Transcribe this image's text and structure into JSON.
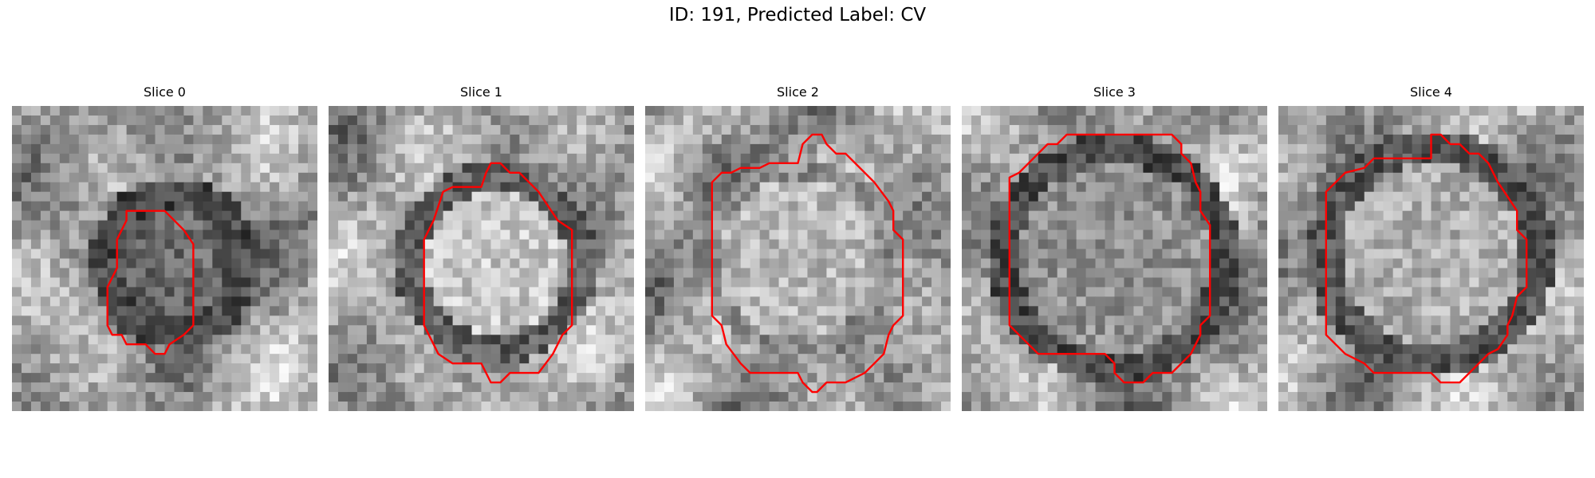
{
  "figure": {
    "title": "ID: 191, Predicted Label: CV",
    "panels": [
      {
        "title": "Slice 0"
      },
      {
        "title": "Slice 1"
      },
      {
        "title": "Slice 2"
      },
      {
        "title": "Slice 3"
      },
      {
        "title": "Slice 4"
      }
    ]
  },
  "contour_color": "#ff0000"
}
